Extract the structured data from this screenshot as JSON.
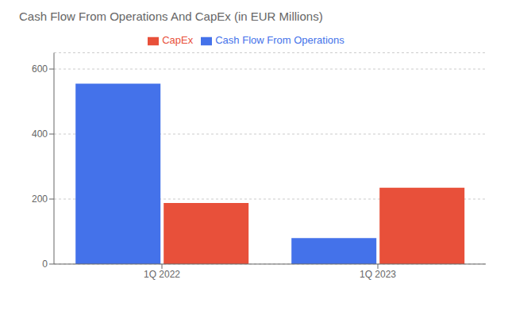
{
  "chart_data": {
    "type": "bar",
    "title": "Cash Flow From Operations And CapEx (in EUR Millions)",
    "categories": [
      "1Q 2022",
      "1Q 2023"
    ],
    "series": [
      {
        "name": "Cash Flow From Operations",
        "color": "#4472EA",
        "values": [
          555,
          80
        ]
      },
      {
        "name": "CapEx",
        "color": "#E8503A",
        "values": [
          188,
          235
        ]
      }
    ],
    "ylim": [
      0,
      650
    ],
    "yticks": [
      0,
      200,
      400,
      600
    ],
    "grid": true,
    "legend": "top"
  }
}
